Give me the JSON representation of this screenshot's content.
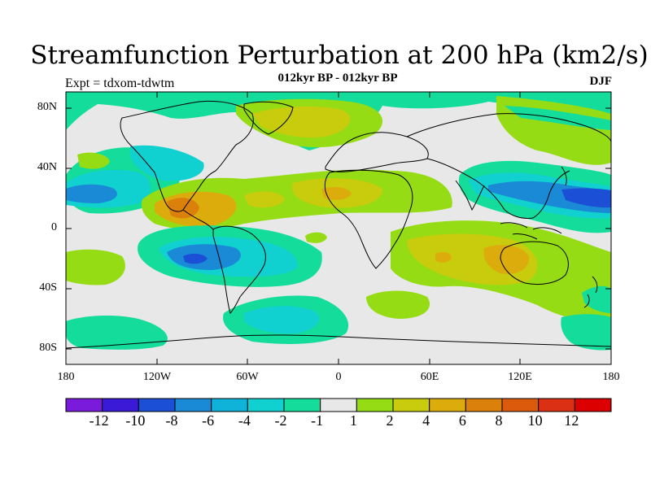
{
  "title": "Streamfunction Perturbation at 200 hPa (km2/s)",
  "subtitle": "012kyr BP - 012kyr BP",
  "left_label": "Expt = tdxom-tdwtm",
  "right_label": "DJF",
  "lat_ticks": [
    "80N",
    "40N",
    "0",
    "40S",
    "80S"
  ],
  "lon_ticks": [
    "180",
    "120W",
    "60W",
    "0",
    "60E",
    "120E",
    "180"
  ],
  "colorbar": {
    "colors": [
      "#7a1bdc",
      "#3a1ad6",
      "#1a4fd6",
      "#1a8ad6",
      "#0fb2d9",
      "#10d0d0",
      "#14dc9a",
      "#e8e8e8",
      "#96dc14",
      "#c8cc0c",
      "#dcac0c",
      "#dc800c",
      "#dc5a0c",
      "#dc3014",
      "#dc0000"
    ],
    "labels": [
      "-12",
      "-10",
      "-8",
      "-6",
      "-4",
      "-2",
      "-1",
      "1",
      "2",
      "4",
      "6",
      "8",
      "10",
      "12"
    ]
  },
  "color_key": {
    "cyan_light": "#14dc9a",
    "cyan": "#10d0d0",
    "blue_light": "#0fb2d9",
    "blue": "#1a8ad6",
    "blue_deep": "#1a4fd6",
    "neutral": "#e8e8e8",
    "green": "#96dc14",
    "yellow": "#c8cc0c",
    "orange": "#dcac0c",
    "orange_dark": "#dc800c"
  }
}
